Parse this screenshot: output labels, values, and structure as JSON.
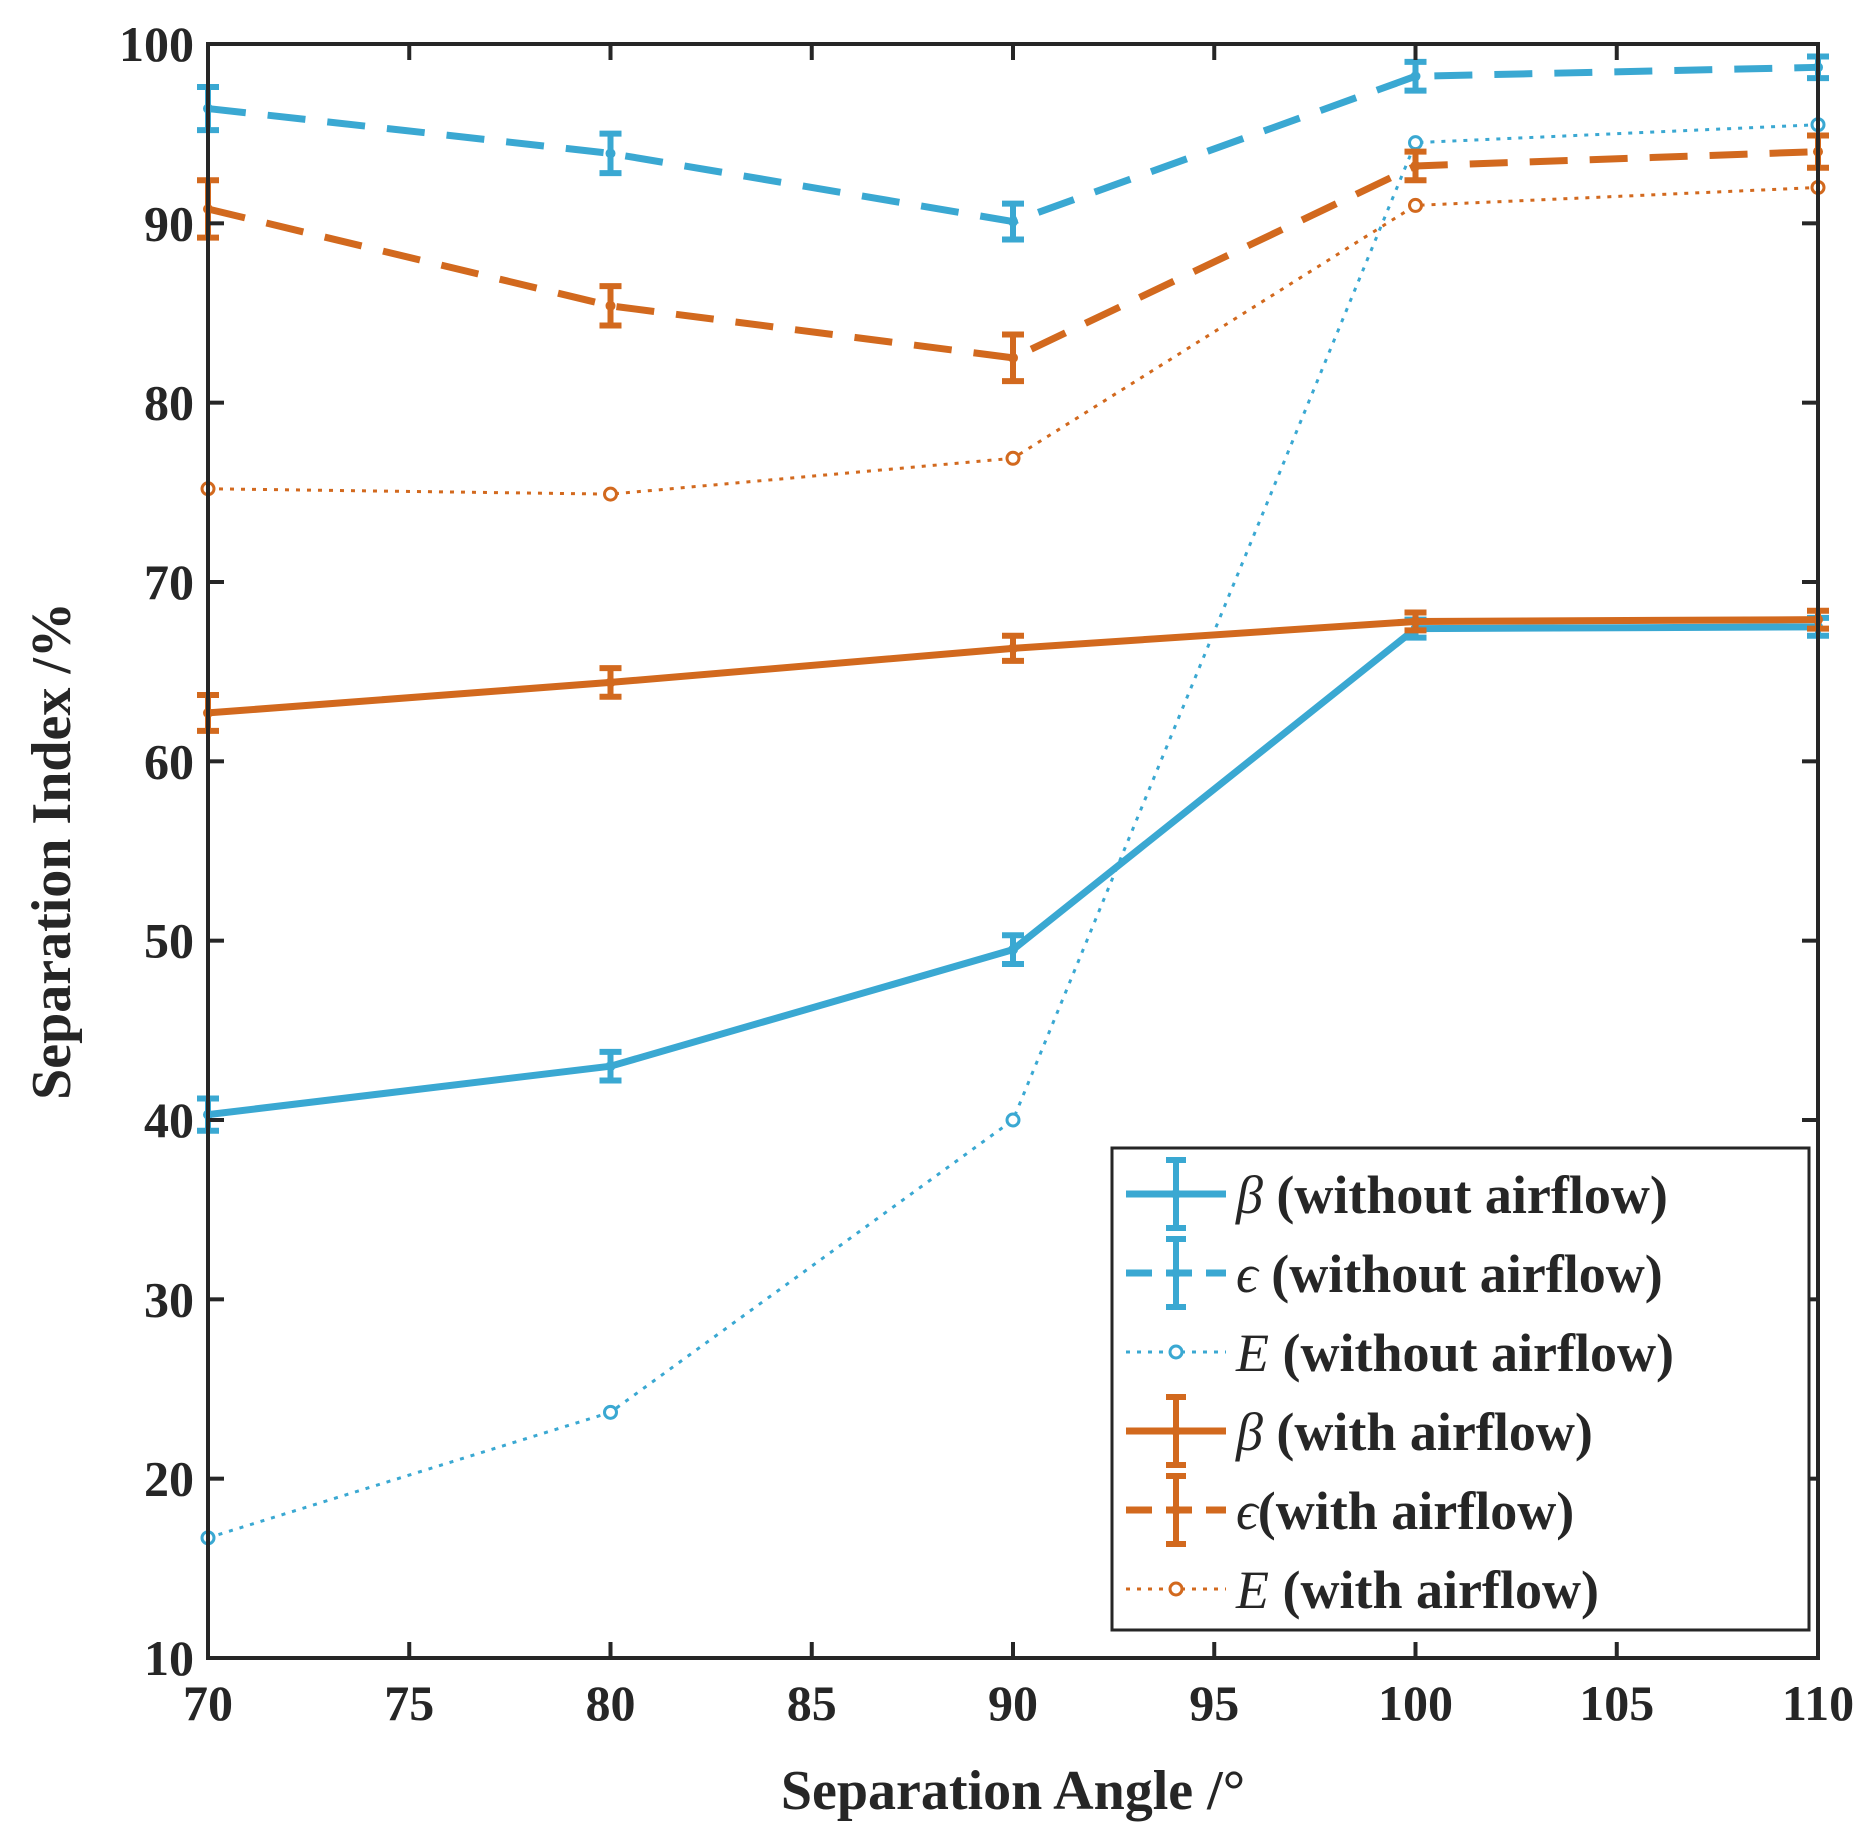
{
  "chart_data": {
    "type": "line",
    "title": "",
    "xlabel": "Separation Angle /°",
    "ylabel": "Separation Index /%",
    "xlim": [
      70,
      110
    ],
    "ylim": [
      10,
      100
    ],
    "xticks": [
      70,
      75,
      80,
      85,
      90,
      95,
      100,
      105,
      110
    ],
    "yticks": [
      10,
      20,
      30,
      40,
      50,
      60,
      70,
      80,
      90,
      100
    ],
    "grid": false,
    "legend_position": "bottom-right",
    "x": [
      70,
      80,
      90,
      100,
      110
    ],
    "series": [
      {
        "symbol": "β",
        "name": " (without airflow)",
        "color": "#3aa8d2",
        "style": "solid",
        "marker": "dot",
        "errorbars": true,
        "values": [
          40.3,
          43.0,
          49.5,
          67.4,
          67.5
        ],
        "errors": [
          0.9,
          0.8,
          0.8,
          0.5,
          0.5
        ]
      },
      {
        "symbol": "ϵ",
        "name": " (without airflow)",
        "color": "#3aa8d2",
        "style": "dashed",
        "marker": "dot",
        "errorbars": true,
        "values": [
          96.4,
          93.9,
          90.1,
          98.2,
          98.7
        ],
        "errors": [
          1.2,
          1.1,
          1.0,
          0.8,
          0.6
        ]
      },
      {
        "symbol": "E",
        "name": " (without airflow)",
        "color": "#3aa8d2",
        "style": "dotted",
        "marker": "circle",
        "errorbars": false,
        "values": [
          16.7,
          23.7,
          40.0,
          94.5,
          95.5
        ],
        "errors": [
          0,
          0,
          0,
          0,
          0
        ]
      },
      {
        "symbol": "β",
        "name": " (with airflow)",
        "color": "#d2691e",
        "style": "solid",
        "marker": "dot",
        "errorbars": true,
        "values": [
          62.7,
          64.4,
          66.3,
          67.8,
          67.9
        ],
        "errors": [
          1.0,
          0.8,
          0.7,
          0.5,
          0.5
        ]
      },
      {
        "symbol": "ϵ",
        "name": "(with airflow)",
        "color": "#d2691e",
        "style": "dashed",
        "marker": "dot",
        "errorbars": true,
        "values": [
          90.8,
          85.4,
          82.5,
          93.2,
          94.0
        ],
        "errors": [
          1.6,
          1.1,
          1.3,
          0.8,
          0.9
        ]
      },
      {
        "symbol": "E",
        "name": " (with airflow)",
        "color": "#d2691e",
        "style": "dotted",
        "marker": "circle",
        "errorbars": false,
        "values": [
          75.2,
          74.9,
          76.9,
          91.0,
          92.0
        ],
        "errors": [
          0,
          0,
          0,
          0,
          0
        ]
      }
    ]
  }
}
